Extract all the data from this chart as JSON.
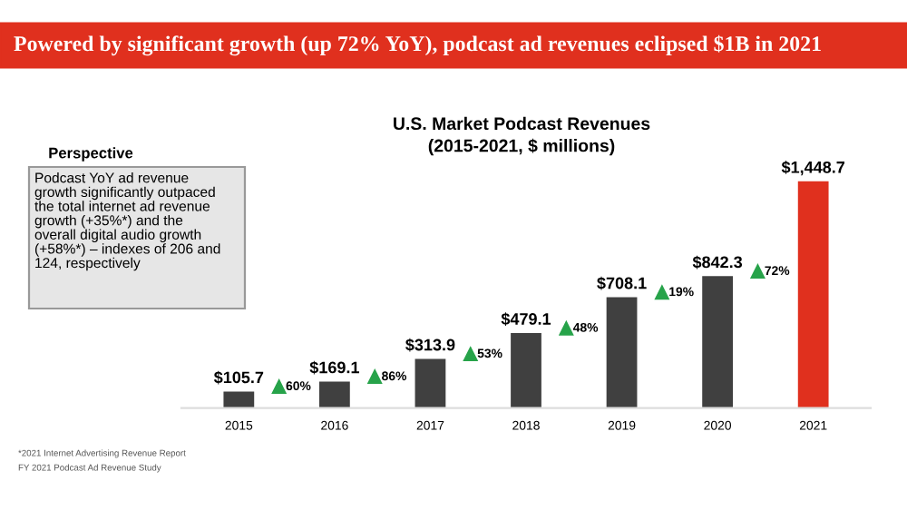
{
  "chart_data": {
    "type": "bar",
    "title": "Powered by significant growth (up 72% YoY), podcast ad revenues eclipsed $1B in 2021",
    "subtitle": "U.S. Market Podcast Revenues\n(2015-2021, $ millions)",
    "categories": [
      "2015",
      "2016",
      "2017",
      "2018",
      "2019",
      "2020",
      "2021"
    ],
    "values": [
      105.7,
      169.1,
      313.9,
      479.1,
      708.1,
      842.3,
      1448.7
    ],
    "colors": [
      "#404040",
      "#404040",
      "#404040",
      "#404040",
      "#404040",
      "#404040",
      "#e0301e"
    ],
    "value_labels": [
      "$105.7",
      "$169.1",
      "$313.9",
      "$479.1",
      "$708.1",
      "$842.3",
      "$1,448.7"
    ],
    "tick_labels": "x",
    "annotations": [
      "Perspective",
      "Podcast YoY ad revenue\ngrowth significantly outpaced\nthe total internet ad revenue\ngrowth (+35%*) and the\noverall digital audio growth\n(+58%*) – indexes of 206 and\n124, respectively",
      "60%",
      "86%",
      "53%",
      "48%",
      "19%",
      "72%",
      "*2021 Internet Advertising Revenue Report",
      "FY 2021 Podcast Ad Revenue Study"
    ]
  }
}
